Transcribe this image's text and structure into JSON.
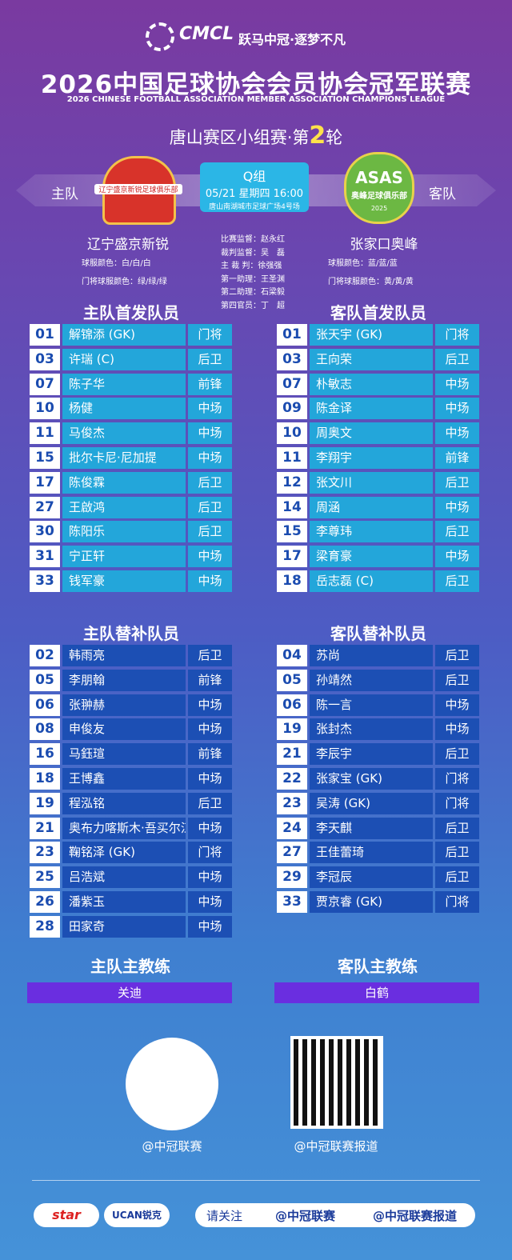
{
  "header": {
    "logo": "CMCL",
    "tagline": "跃马中冠·逐梦不凡",
    "title": "2026中国足球协会会员协会冠军联赛",
    "subtitle": "2026 CHINESE FOOTBALL ASSOCIATION MEMBER ASSOCIATION CHAMPIONS LEAGUE",
    "round": {
      "prefix": "唐山赛区小组赛·第",
      "number": "2",
      "suffix": "轮"
    }
  },
  "match": {
    "home_label": "主队",
    "away_label": "客队",
    "group": "Q组",
    "datetime": "05/21 星期四 16:00",
    "venue": "唐山南湖城市足球广场4号场"
  },
  "home_team": {
    "logo_text": "辽宁盛京新锐足球俱乐部",
    "name": "辽宁盛京新锐",
    "kit": "球服颜色：白/白/白",
    "gk_kit": "门将球服颜色：绿/绿/绿"
  },
  "away_team": {
    "logo_text": "ASAS",
    "logo_subtext": "奥峰足球俱乐部",
    "logo_year": "2025",
    "name": "张家口奥峰",
    "kit": "球服颜色：蓝/蓝/蓝",
    "gk_kit": "门将球服颜色：黄/黄/黄"
  },
  "officials": [
    "比赛监督：赵永红",
    "裁判监督：吴　磊",
    "主 裁 判：徐强强",
    "第一助理：王圣渊",
    "第二助理：石梁毅",
    "第四官员：丁　超"
  ],
  "lineups": {
    "home_starters": {
      "heading": "主队首发队员",
      "rows": [
        [
          "01",
          "解锦添 (GK)",
          "门将"
        ],
        [
          "03",
          "许瑞 (C)",
          "后卫"
        ],
        [
          "07",
          "陈子华",
          "前锋"
        ],
        [
          "10",
          "杨健",
          "中场"
        ],
        [
          "11",
          "马俊杰",
          "中场"
        ],
        [
          "15",
          "批尔卡尼·尼加提",
          "中场"
        ],
        [
          "17",
          "陈俊霖",
          "后卫"
        ],
        [
          "27",
          "王啟鸿",
          "后卫"
        ],
        [
          "30",
          "陈阳乐",
          "后卫"
        ],
        [
          "31",
          "宁正轩",
          "中场"
        ],
        [
          "33",
          "钱军豪",
          "中场"
        ]
      ]
    },
    "away_starters": {
      "heading": "客队首发队员",
      "rows": [
        [
          "01",
          "张天宇 (GK)",
          "门将"
        ],
        [
          "03",
          "王向荣",
          "后卫"
        ],
        [
          "07",
          "朴敏志",
          "中场"
        ],
        [
          "09",
          "陈金译",
          "中场"
        ],
        [
          "10",
          "周奥文",
          "中场"
        ],
        [
          "11",
          "李翔宇",
          "前锋"
        ],
        [
          "12",
          "张文川",
          "后卫"
        ],
        [
          "14",
          "周涵",
          "中场"
        ],
        [
          "15",
          "李尊玮",
          "后卫"
        ],
        [
          "17",
          "梁育豪",
          "中场"
        ],
        [
          "18",
          "岳志磊 (C)",
          "后卫"
        ]
      ]
    },
    "home_subs": {
      "heading": "主队替补队员",
      "rows": [
        [
          "02",
          "韩雨亮",
          "后卫"
        ],
        [
          "05",
          "李朋翰",
          "前锋"
        ],
        [
          "06",
          "张翀赫",
          "中场"
        ],
        [
          "08",
          "申俊友",
          "中场"
        ],
        [
          "16",
          "马鈺瑄",
          "前锋"
        ],
        [
          "18",
          "王博鑫",
          "中场"
        ],
        [
          "19",
          "程泓铭",
          "后卫"
        ],
        [
          "21",
          "奥布力喀斯木·吾买尔江",
          "中场"
        ],
        [
          "23",
          "鞠铭泽 (GK)",
          "门将"
        ],
        [
          "25",
          "吕浩斌",
          "中场"
        ],
        [
          "26",
          "潘紫玉",
          "中场"
        ],
        [
          "28",
          "田家奇",
          "中场"
        ]
      ]
    },
    "away_subs": {
      "heading": "客队替补队员",
      "rows": [
        [
          "04",
          "苏尚",
          "后卫"
        ],
        [
          "05",
          "孙靖然",
          "后卫"
        ],
        [
          "06",
          "陈一言",
          "中场"
        ],
        [
          "19",
          "张封杰",
          "中场"
        ],
        [
          "21",
          "李辰宇",
          "后卫"
        ],
        [
          "22",
          "张家宝 (GK)",
          "门将"
        ],
        [
          "23",
          "吴涛 (GK)",
          "门将"
        ],
        [
          "24",
          "李天麒",
          "后卫"
        ],
        [
          "27",
          "王佳蕾琦",
          "后卫"
        ],
        [
          "29",
          "李冠辰",
          "后卫"
        ],
        [
          "33",
          "贾京睿 (GK)",
          "门将"
        ]
      ]
    }
  },
  "coaches": {
    "home_heading": "主队主教练",
    "home_name": "关迪",
    "away_heading": "客队主教练",
    "away_name": "白鹤"
  },
  "social": {
    "qr_left_caption": "@中冠联赛",
    "qr_right_caption": "@中冠联赛报道"
  },
  "footer": {
    "sponsors": [
      "star",
      "UCAN锐克"
    ],
    "follow": "请关注",
    "douyin": "@中冠联赛",
    "weibo": "@中冠联赛报道"
  }
}
